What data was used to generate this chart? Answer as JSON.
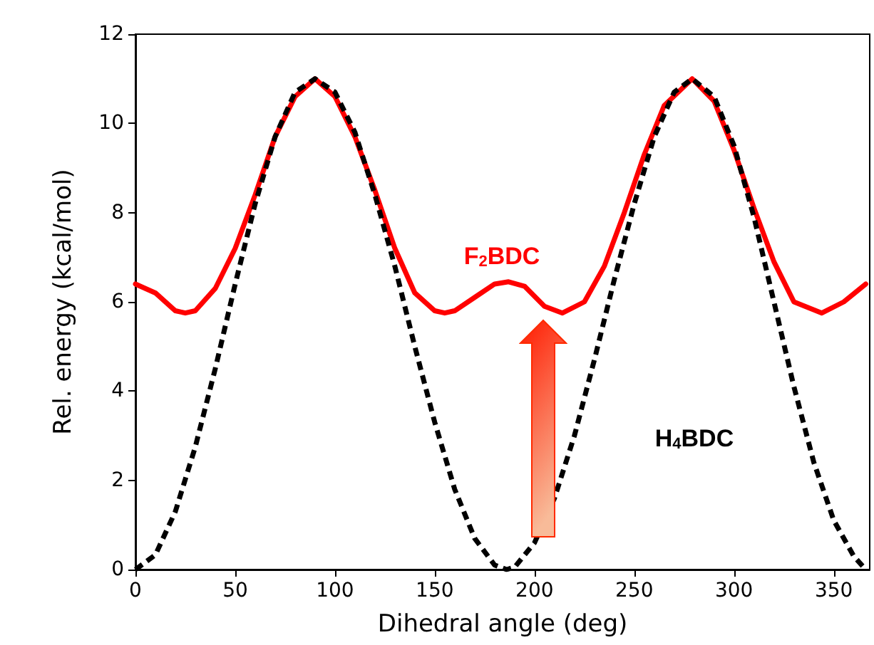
{
  "chart_data": {
    "type": "line",
    "xlabel": "Dihedral angle (deg)",
    "ylabel": "Rel. energy (kcal/mol)",
    "xlim": [
      0,
      368
    ],
    "xticks": [
      0,
      50,
      100,
      150,
      200,
      250,
      300,
      350
    ],
    "ylim": [
      0,
      12
    ],
    "yticks": [
      0,
      2,
      4,
      6,
      8,
      10,
      12
    ],
    "grid": false,
    "legend": false,
    "marker": "none",
    "series": [
      {
        "name": "F$_{2}$BDC",
        "color": "#ff0000",
        "line_style": "solid",
        "x": [
          0,
          10,
          20,
          25,
          30,
          40,
          50,
          60,
          70,
          80,
          90,
          100,
          110,
          120,
          130,
          140,
          150,
          155,
          160,
          170,
          180,
          187,
          195,
          205,
          214,
          225,
          235,
          245,
          255,
          265,
          279,
          290,
          300,
          310,
          320,
          330,
          344,
          355,
          366
        ],
        "values": [
          6.4,
          6.2,
          5.8,
          5.75,
          5.8,
          6.3,
          7.2,
          8.4,
          9.7,
          10.6,
          11,
          10.6,
          9.7,
          8.5,
          7.2,
          6.2,
          5.8,
          5.75,
          5.8,
          6.1,
          6.4,
          6.45,
          6.35,
          5.9,
          5.75,
          6.0,
          6.8,
          8.0,
          9.3,
          10.4,
          11,
          10.5,
          9.4,
          8.1,
          6.9,
          6.0,
          5.75,
          6.0,
          6.4
        ]
      },
      {
        "name": "H$_{4}$BDC",
        "color": "#000000",
        "line_style": "dashed",
        "x": [
          0,
          10,
          20,
          30,
          40,
          50,
          60,
          70,
          80,
          90,
          100,
          110,
          120,
          130,
          140,
          150,
          160,
          170,
          180,
          186,
          190,
          200,
          210,
          220,
          230,
          240,
          250,
          260,
          270,
          279,
          290,
          300,
          310,
          320,
          330,
          340,
          350,
          360,
          366
        ],
        "values": [
          0,
          0.33,
          1.3,
          2.75,
          4.5,
          6.4,
          8.2,
          9.7,
          10.7,
          11,
          10.7,
          9.8,
          8.4,
          6.8,
          5.0,
          3.3,
          1.8,
          0.7,
          0.1,
          0,
          0.05,
          0.6,
          1.6,
          3.0,
          4.7,
          6.5,
          8.2,
          9.7,
          10.7,
          11,
          10.6,
          9.5,
          7.9,
          6.0,
          4.1,
          2.4,
          1.1,
          0.3,
          0
        ]
      }
    ]
  }
}
